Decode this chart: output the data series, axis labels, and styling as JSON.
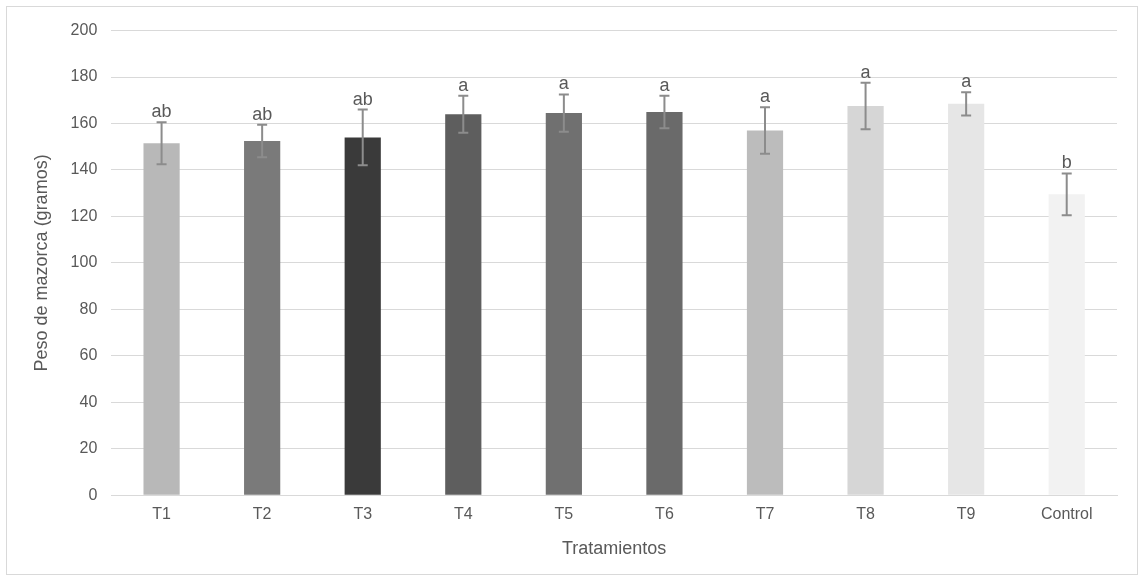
{
  "chart_data": {
    "type": "bar",
    "xlabel": "Tratamientos",
    "ylabel": "Peso de mazorca (gramos)",
    "categories": [
      "T1",
      "T2",
      "T3",
      "T4",
      "T5",
      "T6",
      "T7",
      "T8",
      "T9",
      "Control"
    ],
    "values": [
      151.5,
      152.5,
      154,
      164,
      164.5,
      165,
      157,
      167.5,
      168.5,
      129.5
    ],
    "errors": [
      9,
      7,
      12,
      8,
      8,
      7,
      10,
      10,
      5,
      9
    ],
    "colors": [
      "#b8b8b8",
      "#7a7a7a",
      "#3a3a3a",
      "#5e5e5e",
      "#707070",
      "#6a6a6a",
      "#bcbcbc",
      "#d6d6d6",
      "#e6e6e6",
      "#f2f2f2"
    ],
    "ylim": [
      0,
      200
    ],
    "yticks": [
      0,
      20,
      40,
      60,
      80,
      100,
      120,
      140,
      160,
      180,
      200
    ],
    "grid": "y",
    "legend": false,
    "annotations": [
      {
        "text": "ab",
        "x": "T1",
        "y": 160.5
      },
      {
        "text": "ab",
        "x": "T2",
        "y": 159.5
      },
      {
        "text": "ab",
        "x": "T3",
        "y": 166
      },
      {
        "text": "a",
        "x": "T4",
        "y": 172
      },
      {
        "text": "a",
        "x": "T5",
        "y": 172.5
      },
      {
        "text": "a",
        "x": "T6",
        "y": 172
      },
      {
        "text": "a",
        "x": "T7",
        "y": 167
      },
      {
        "text": "a",
        "x": "T8",
        "y": 177.5
      },
      {
        "text": "a",
        "x": "T9",
        "y": 173.5
      },
      {
        "text": "b",
        "x": "Control",
        "y": 138.5
      }
    ]
  }
}
